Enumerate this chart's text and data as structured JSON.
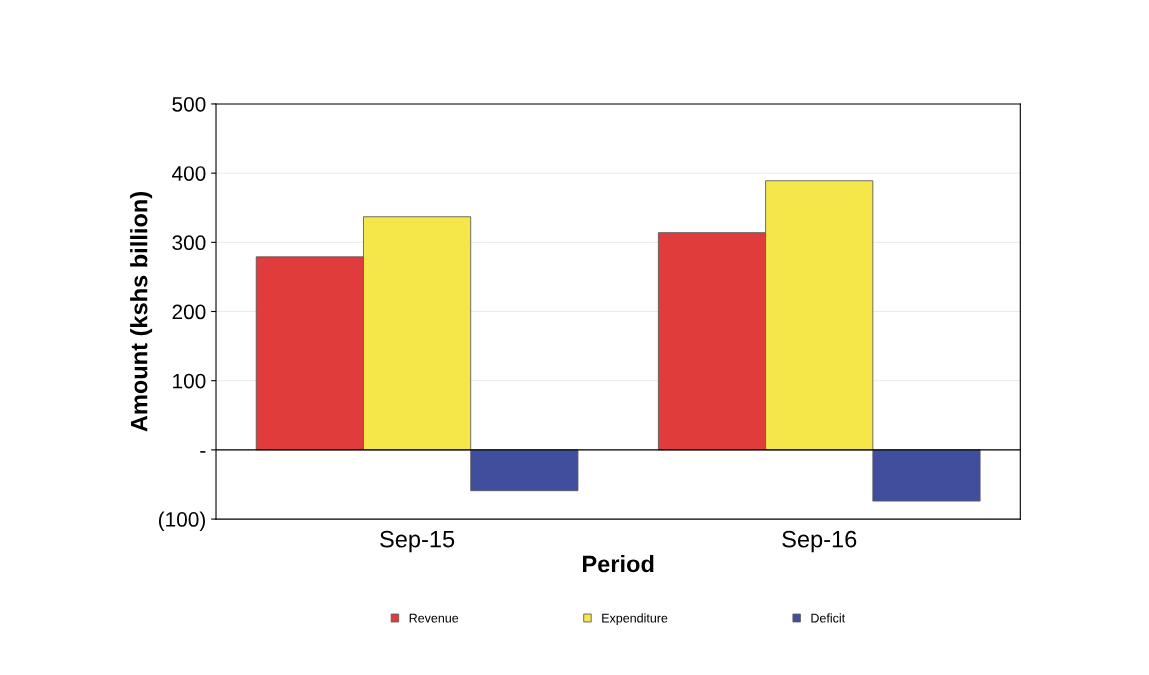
{
  "chart_data": {
    "type": "bar",
    "xlabel": "Period",
    "ylabel": "Amount (kshs billion)",
    "categories": [
      "Sep-15",
      "Sep-16"
    ],
    "series": [
      {
        "name": "Revenue",
        "color": "#e03c3c",
        "values": [
          279,
          314
        ]
      },
      {
        "name": "Expenditure",
        "color": "#f5e64a",
        "values": [
          337,
          389
        ]
      },
      {
        "name": "Deficit",
        "color": "#3f4f9e",
        "values": [
          -59,
          -74
        ]
      }
    ],
    "ylim": [
      -100,
      500
    ],
    "yticks": [
      {
        "value": -100,
        "label": "(100)"
      },
      {
        "value": 0,
        "label": "-"
      },
      100,
      200,
      300,
      400,
      500
    ],
    "grid": "y",
    "legend": "bottom"
  }
}
